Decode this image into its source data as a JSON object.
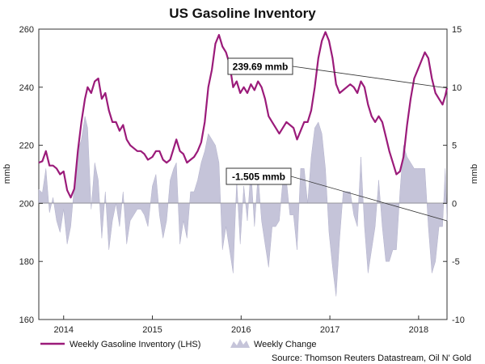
{
  "chart_data": {
    "type": "line",
    "title": "US Gasoline Inventory",
    "ylabel": "mmb",
    "y2label": "mmb",
    "ylim": [
      160,
      260
    ],
    "y2lim": [
      -10,
      15
    ],
    "xlim": [
      2013.72,
      2018.32
    ],
    "y_ticks": [
      "160",
      "180",
      "200",
      "220",
      "240",
      "260"
    ],
    "y2_ticks": [
      "-10",
      "-5",
      "0",
      "5",
      "10",
      "15"
    ],
    "x_tick_labels": [
      {
        "label": "2014",
        "x": 2014.0
      },
      {
        "label": "2015",
        "x": 2015.0
      },
      {
        "label": "2016",
        "x": 2016.0
      },
      {
        "label": "2017",
        "x": 2017.0
      },
      {
        "label": "2018",
        "x": 2018.0
      }
    ],
    "series": [
      {
        "name": "Weekly Gasoline Inventory (LHS)",
        "axis": "left",
        "color": "#9b1b7a",
        "points": [
          [
            2013.72,
            214
          ],
          [
            2013.76,
            214.5
          ],
          [
            2013.8,
            218
          ],
          [
            2013.84,
            213
          ],
          [
            2013.88,
            213
          ],
          [
            2013.92,
            212
          ],
          [
            2013.96,
            210
          ],
          [
            2014.0,
            211
          ],
          [
            2014.04,
            204.5
          ],
          [
            2014.08,
            202
          ],
          [
            2014.12,
            205
          ],
          [
            2014.16,
            218
          ],
          [
            2014.2,
            228
          ],
          [
            2014.24,
            236
          ],
          [
            2014.27,
            240
          ],
          [
            2014.31,
            238
          ],
          [
            2014.35,
            242
          ],
          [
            2014.39,
            243
          ],
          [
            2014.43,
            236
          ],
          [
            2014.47,
            238
          ],
          [
            2014.51,
            232
          ],
          [
            2014.55,
            228
          ],
          [
            2014.59,
            228
          ],
          [
            2014.63,
            225
          ],
          [
            2014.67,
            227
          ],
          [
            2014.71,
            222
          ],
          [
            2014.75,
            220
          ],
          [
            2014.79,
            219
          ],
          [
            2014.83,
            218
          ],
          [
            2014.87,
            218
          ],
          [
            2014.91,
            217
          ],
          [
            2014.95,
            215
          ],
          [
            2015.0,
            216
          ],
          [
            2015.04,
            218
          ],
          [
            2015.08,
            218
          ],
          [
            2015.12,
            215
          ],
          [
            2015.16,
            214
          ],
          [
            2015.2,
            215
          ],
          [
            2015.24,
            219
          ],
          [
            2015.27,
            222
          ],
          [
            2015.31,
            218
          ],
          [
            2015.35,
            217
          ],
          [
            2015.39,
            214
          ],
          [
            2015.43,
            215
          ],
          [
            2015.47,
            216
          ],
          [
            2015.51,
            218
          ],
          [
            2015.55,
            221
          ],
          [
            2015.59,
            228
          ],
          [
            2015.63,
            240
          ],
          [
            2015.67,
            246
          ],
          [
            2015.71,
            255
          ],
          [
            2015.75,
            258
          ],
          [
            2015.79,
            254
          ],
          [
            2015.83,
            252
          ],
          [
            2015.87,
            248
          ],
          [
            2015.91,
            240
          ],
          [
            2015.95,
            242
          ],
          [
            2015.99,
            238
          ],
          [
            2016.03,
            240
          ],
          [
            2016.07,
            238
          ],
          [
            2016.11,
            241
          ],
          [
            2016.15,
            239
          ],
          [
            2016.19,
            242
          ],
          [
            2016.23,
            240
          ],
          [
            2016.27,
            236
          ],
          [
            2016.31,
            230
          ],
          [
            2016.35,
            228
          ],
          [
            2016.39,
            226
          ],
          [
            2016.43,
            224
          ],
          [
            2016.47,
            226
          ],
          [
            2016.51,
            228
          ],
          [
            2016.55,
            227
          ],
          [
            2016.59,
            226
          ],
          [
            2016.63,
            222
          ],
          [
            2016.67,
            225
          ],
          [
            2016.71,
            228
          ],
          [
            2016.75,
            228
          ],
          [
            2016.79,
            232
          ],
          [
            2016.83,
            240
          ],
          [
            2016.87,
            250
          ],
          [
            2016.91,
            256
          ],
          [
            2016.95,
            259
          ],
          [
            2016.99,
            256
          ],
          [
            2017.03,
            250
          ],
          [
            2017.07,
            241
          ],
          [
            2017.11,
            238
          ],
          [
            2017.15,
            239
          ],
          [
            2017.19,
            240
          ],
          [
            2017.23,
            241
          ],
          [
            2017.27,
            240
          ],
          [
            2017.31,
            238
          ],
          [
            2017.35,
            242
          ],
          [
            2017.39,
            240
          ],
          [
            2017.43,
            234
          ],
          [
            2017.47,
            230
          ],
          [
            2017.51,
            228
          ],
          [
            2017.55,
            230
          ],
          [
            2017.59,
            228
          ],
          [
            2017.63,
            223
          ],
          [
            2017.67,
            218
          ],
          [
            2017.71,
            214
          ],
          [
            2017.75,
            210
          ],
          [
            2017.79,
            211
          ],
          [
            2017.83,
            216
          ],
          [
            2017.87,
            227
          ],
          [
            2017.91,
            236
          ],
          [
            2017.95,
            243
          ],
          [
            2017.99,
            246
          ],
          [
            2018.03,
            249
          ],
          [
            2018.07,
            252
          ],
          [
            2018.11,
            250
          ],
          [
            2018.15,
            243
          ],
          [
            2018.19,
            238
          ],
          [
            2018.23,
            236
          ],
          [
            2018.27,
            234
          ],
          [
            2018.3,
            237
          ],
          [
            2018.32,
            239.69
          ]
        ]
      },
      {
        "name": "Weekly Change",
        "axis": "right",
        "color": "#c5c4d9",
        "points": [
          [
            2013.72,
            1.2
          ],
          [
            2013.76,
            0.9
          ],
          [
            2013.8,
            3.0
          ],
          [
            2013.84,
            -0.8
          ],
          [
            2013.88,
            0.5
          ],
          [
            2013.92,
            -1.5
          ],
          [
            2013.96,
            -2.5
          ],
          [
            2014.0,
            -0.5
          ],
          [
            2014.04,
            -3.5
          ],
          [
            2014.08,
            -2.0
          ],
          [
            2014.12,
            1.5
          ],
          [
            2014.16,
            4.5
          ],
          [
            2014.2,
            5.5
          ],
          [
            2014.24,
            7.5
          ],
          [
            2014.27,
            6.5
          ],
          [
            2014.31,
            -0.5
          ],
          [
            2014.35,
            3.5
          ],
          [
            2014.39,
            2.0
          ],
          [
            2014.43,
            -3.0
          ],
          [
            2014.47,
            1.0
          ],
          [
            2014.51,
            -4.0
          ],
          [
            2014.55,
            -1.5
          ],
          [
            2014.59,
            0.0
          ],
          [
            2014.63,
            -2.0
          ],
          [
            2014.67,
            1.0
          ],
          [
            2014.71,
            -3.5
          ],
          [
            2014.75,
            -1.5
          ],
          [
            2014.79,
            -1.0
          ],
          [
            2014.83,
            -0.5
          ],
          [
            2014.87,
            -0.5
          ],
          [
            2014.91,
            -1.0
          ],
          [
            2014.95,
            -2.0
          ],
          [
            2015.0,
            1.5
          ],
          [
            2015.04,
            2.5
          ],
          [
            2015.08,
            -1.0
          ],
          [
            2015.12,
            -3.0
          ],
          [
            2015.16,
            -1.5
          ],
          [
            2015.2,
            2.0
          ],
          [
            2015.24,
            3.0
          ],
          [
            2015.27,
            3.5
          ],
          [
            2015.31,
            -3.5
          ],
          [
            2015.35,
            -1.5
          ],
          [
            2015.39,
            -3.0
          ],
          [
            2015.43,
            1.0
          ],
          [
            2015.47,
            1.0
          ],
          [
            2015.51,
            2.0
          ],
          [
            2015.55,
            3.5
          ],
          [
            2015.59,
            4.5
          ],
          [
            2015.63,
            6.0
          ],
          [
            2015.67,
            5.5
          ],
          [
            2015.71,
            5.0
          ],
          [
            2015.75,
            3.5
          ],
          [
            2015.79,
            -4.0
          ],
          [
            2015.83,
            -2.0
          ],
          [
            2015.87,
            -4.0
          ],
          [
            2015.91,
            -6.0
          ],
          [
            2015.95,
            2.0
          ],
          [
            2015.99,
            -3.5
          ],
          [
            2016.03,
            1.5
          ],
          [
            2016.07,
            -1.5
          ],
          [
            2016.11,
            3.0
          ],
          [
            2016.15,
            -2.0
          ],
          [
            2016.19,
            2.5
          ],
          [
            2016.23,
            -1.5
          ],
          [
            2016.27,
            -3.5
          ],
          [
            2016.31,
            -5.5
          ],
          [
            2016.35,
            -2.0
          ],
          [
            2016.39,
            -2.0
          ],
          [
            2016.43,
            -1.5
          ],
          [
            2016.47,
            2.0
          ],
          [
            2016.51,
            2.0
          ],
          [
            2016.55,
            -1.0
          ],
          [
            2016.59,
            -1.0
          ],
          [
            2016.63,
            -4.0
          ],
          [
            2016.67,
            3.0
          ],
          [
            2016.71,
            3.0
          ],
          [
            2016.75,
            0.0
          ],
          [
            2016.79,
            4.0
          ],
          [
            2016.83,
            6.5
          ],
          [
            2016.87,
            7.0
          ],
          [
            2016.91,
            6.0
          ],
          [
            2016.95,
            3.0
          ],
          [
            2016.99,
            -2.5
          ],
          [
            2017.03,
            -5.5
          ],
          [
            2017.07,
            -8.0
          ],
          [
            2017.11,
            -3.0
          ],
          [
            2017.15,
            1.0
          ],
          [
            2017.19,
            1.0
          ],
          [
            2017.23,
            1.0
          ],
          [
            2017.27,
            -1.0
          ],
          [
            2017.31,
            -2.0
          ],
          [
            2017.35,
            4.0
          ],
          [
            2017.39,
            -2.0
          ],
          [
            2017.43,
            -6.0
          ],
          [
            2017.47,
            -4.0
          ],
          [
            2017.51,
            -2.0
          ],
          [
            2017.55,
            2.0
          ],
          [
            2017.59,
            -2.0
          ],
          [
            2017.63,
            -5.0
          ],
          [
            2017.67,
            -5.0
          ],
          [
            2017.71,
            -4.0
          ],
          [
            2017.75,
            -4.0
          ],
          [
            2017.79,
            1.0
          ],
          [
            2017.83,
            5.0
          ],
          [
            2017.87,
            4.0
          ],
          [
            2017.91,
            3.5
          ],
          [
            2017.95,
            3.0
          ],
          [
            2017.99,
            3.0
          ],
          [
            2018.03,
            3.0
          ],
          [
            2018.07,
            3.0
          ],
          [
            2018.11,
            -2.0
          ],
          [
            2018.15,
            -6.0
          ],
          [
            2018.19,
            -5.0
          ],
          [
            2018.23,
            -2.0
          ],
          [
            2018.27,
            -2.0
          ],
          [
            2018.3,
            3.0
          ],
          [
            2018.32,
            -1.505
          ]
        ]
      }
    ],
    "annotations": [
      {
        "text": "239.69 mmb",
        "axis": "left",
        "x": 2018.32,
        "y": 239.69
      },
      {
        "text": "-1.505 mmb",
        "axis": "right",
        "x": 2018.32,
        "y": -1.505
      }
    ],
    "source": "Source: Thomson Reuters Datastream, Oil N' Gold",
    "grid": false,
    "legend_position": "bottom"
  }
}
